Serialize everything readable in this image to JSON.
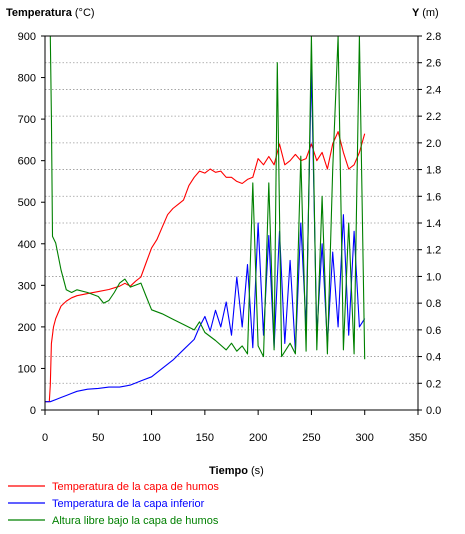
{
  "chart_data": {
    "type": "line",
    "y_left_label": "Temperatura",
    "y_left_unit": "(°C)",
    "y_right_label": "Y",
    "y_right_unit": "(m)",
    "x_label": "Tiempo",
    "x_unit": "(s)",
    "x_range": [
      0,
      350
    ],
    "y_left_range": [
      0,
      900
    ],
    "y_right_range": [
      0,
      2.8
    ],
    "x_ticks": [
      "0",
      "50",
      "100",
      "150",
      "200",
      "250",
      "300",
      "350"
    ],
    "y_left_ticks": [
      "0",
      "100",
      "200",
      "300",
      "400",
      "500",
      "600",
      "700",
      "800",
      "900"
    ],
    "y_right_ticks": [
      "0.0",
      "0.2",
      "0.4",
      "0.6",
      "0.8",
      "1.0",
      "1.2",
      "1.4",
      "1.6",
      "1.8",
      "2.0",
      "2.2",
      "2.4",
      "2.6",
      "2.8"
    ],
    "grid": "horizontal dotted",
    "legend_position": "bottom",
    "series": [
      {
        "name": "Temperatura de la capa de humos",
        "color": "#ff0000",
        "axis": "left",
        "points": [
          [
            0,
            20
          ],
          [
            4,
            20
          ],
          [
            5,
            60
          ],
          [
            6,
            160
          ],
          [
            8,
            200
          ],
          [
            10,
            220
          ],
          [
            15,
            250
          ],
          [
            20,
            262
          ],
          [
            25,
            270
          ],
          [
            30,
            275
          ],
          [
            40,
            280
          ],
          [
            50,
            285
          ],
          [
            60,
            290
          ],
          [
            70,
            298
          ],
          [
            75,
            305
          ],
          [
            80,
            298
          ],
          [
            85,
            310
          ],
          [
            90,
            320
          ],
          [
            95,
            355
          ],
          [
            100,
            390
          ],
          [
            105,
            410
          ],
          [
            110,
            440
          ],
          [
            115,
            470
          ],
          [
            120,
            485
          ],
          [
            125,
            495
          ],
          [
            130,
            505
          ],
          [
            135,
            540
          ],
          [
            140,
            560
          ],
          [
            145,
            575
          ],
          [
            150,
            570
          ],
          [
            155,
            580
          ],
          [
            160,
            572
          ],
          [
            165,
            575
          ],
          [
            170,
            560
          ],
          [
            175,
            560
          ],
          [
            180,
            550
          ],
          [
            185,
            545
          ],
          [
            190,
            555
          ],
          [
            195,
            560
          ],
          [
            200,
            605
          ],
          [
            205,
            590
          ],
          [
            210,
            610
          ],
          [
            215,
            590
          ],
          [
            220,
            640
          ],
          [
            225,
            590
          ],
          [
            230,
            600
          ],
          [
            235,
            615
          ],
          [
            240,
            600
          ],
          [
            245,
            605
          ],
          [
            250,
            640
          ],
          [
            255,
            600
          ],
          [
            260,
            620
          ],
          [
            265,
            580
          ],
          [
            270,
            640
          ],
          [
            275,
            670
          ],
          [
            280,
            620
          ],
          [
            285,
            580
          ],
          [
            290,
            590
          ],
          [
            295,
            620
          ],
          [
            300,
            665
          ]
        ]
      },
      {
        "name": "Temperatura de la capa inferior",
        "color": "#0000ff",
        "axis": "left",
        "points": [
          [
            0,
            20
          ],
          [
            5,
            20
          ],
          [
            10,
            25
          ],
          [
            15,
            30
          ],
          [
            20,
            35
          ],
          [
            25,
            40
          ],
          [
            30,
            45
          ],
          [
            40,
            50
          ],
          [
            50,
            52
          ],
          [
            60,
            55
          ],
          [
            70,
            55
          ],
          [
            80,
            60
          ],
          [
            90,
            70
          ],
          [
            100,
            80
          ],
          [
            110,
            100
          ],
          [
            120,
            120
          ],
          [
            130,
            145
          ],
          [
            140,
            170
          ],
          [
            145,
            200
          ],
          [
            150,
            225
          ],
          [
            155,
            190
          ],
          [
            160,
            240
          ],
          [
            165,
            200
          ],
          [
            170,
            260
          ],
          [
            175,
            180
          ],
          [
            180,
            320
          ],
          [
            185,
            200
          ],
          [
            190,
            350
          ],
          [
            195,
            150
          ],
          [
            200,
            450
          ],
          [
            205,
            180
          ],
          [
            210,
            420
          ],
          [
            215,
            150
          ],
          [
            220,
            430
          ],
          [
            225,
            160
          ],
          [
            230,
            360
          ],
          [
            235,
            140
          ],
          [
            240,
            450
          ],
          [
            245,
            200
          ],
          [
            250,
            820
          ],
          [
            255,
            180
          ],
          [
            260,
            400
          ],
          [
            265,
            160
          ],
          [
            270,
            380
          ],
          [
            275,
            200
          ],
          [
            280,
            470
          ],
          [
            285,
            180
          ],
          [
            290,
            430
          ],
          [
            295,
            200
          ],
          [
            300,
            220
          ]
        ]
      },
      {
        "name": "Altura libre bajo la capa de humos",
        "color": "#008000",
        "axis": "right",
        "points": [
          [
            0,
            2.8
          ],
          [
            5,
            2.8
          ],
          [
            6,
            2.2
          ],
          [
            7,
            1.3
          ],
          [
            10,
            1.25
          ],
          [
            15,
            1.05
          ],
          [
            20,
            0.9
          ],
          [
            25,
            0.88
          ],
          [
            30,
            0.9
          ],
          [
            40,
            0.88
          ],
          [
            50,
            0.85
          ],
          [
            55,
            0.8
          ],
          [
            60,
            0.82
          ],
          [
            65,
            0.88
          ],
          [
            70,
            0.95
          ],
          [
            75,
            0.98
          ],
          [
            80,
            0.92
          ],
          [
            90,
            0.95
          ],
          [
            95,
            0.85
          ],
          [
            100,
            0.75
          ],
          [
            110,
            0.72
          ],
          [
            120,
            0.68
          ],
          [
            130,
            0.64
          ],
          [
            140,
            0.6
          ],
          [
            145,
            0.66
          ],
          [
            150,
            0.58
          ],
          [
            155,
            0.55
          ],
          [
            160,
            0.52
          ],
          [
            170,
            0.45
          ],
          [
            175,
            0.5
          ],
          [
            180,
            0.44
          ],
          [
            185,
            0.48
          ],
          [
            190,
            0.42
          ],
          [
            195,
            1.7
          ],
          [
            200,
            0.48
          ],
          [
            205,
            0.4
          ],
          [
            210,
            1.7
          ],
          [
            215,
            0.45
          ],
          [
            218,
            2.6
          ],
          [
            222,
            0.4
          ],
          [
            230,
            0.5
          ],
          [
            235,
            0.42
          ],
          [
            240,
            1.9
          ],
          [
            245,
            0.44
          ],
          [
            250,
            2.8
          ],
          [
            255,
            0.45
          ],
          [
            260,
            1.6
          ],
          [
            265,
            0.42
          ],
          [
            270,
            1.8
          ],
          [
            275,
            2.8
          ],
          [
            280,
            0.45
          ],
          [
            285,
            1.4
          ],
          [
            290,
            0.42
          ],
          [
            295,
            2.8
          ],
          [
            300,
            0.38
          ]
        ]
      }
    ]
  }
}
